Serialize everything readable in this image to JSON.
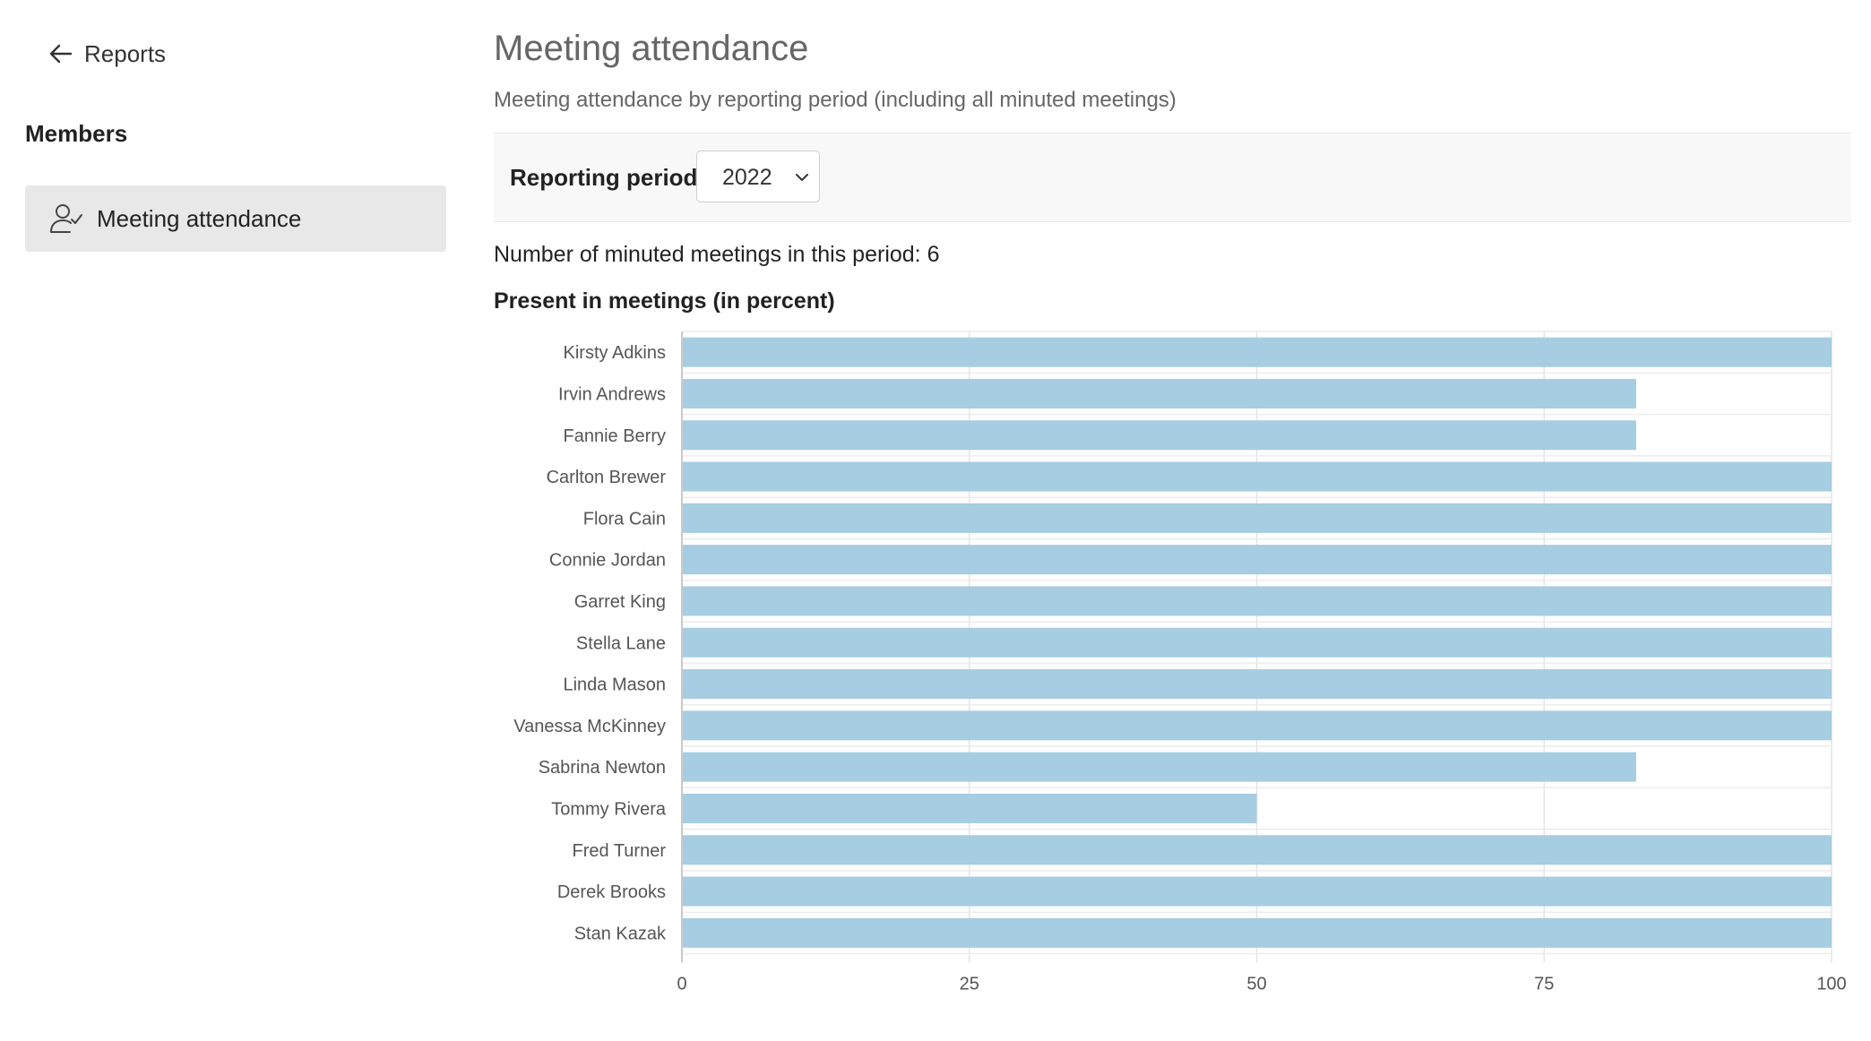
{
  "sidebar": {
    "back_label": "Reports",
    "section_title": "Members",
    "nav_items": [
      {
        "label": "Meeting attendance",
        "icon": "user-check-icon",
        "active": true
      }
    ]
  },
  "main": {
    "title": "Meeting attendance",
    "subtitle": "Meeting attendance by reporting period (including all minuted meetings)",
    "filter": {
      "label": "Reporting period",
      "selected": "2022"
    },
    "meetings_count_text": "Number of minuted meetings in this period: 6"
  },
  "chart_data": {
    "type": "bar",
    "orientation": "horizontal",
    "title": "Present in meetings (in percent)",
    "xlabel": "",
    "ylabel": "",
    "xlim": [
      0,
      100
    ],
    "x_ticks": [
      0,
      25,
      50,
      75,
      100
    ],
    "grid": true,
    "bar_color": "#a6cde2",
    "categories": [
      "Kirsty Adkins",
      "Irvin Andrews",
      "Fannie Berry",
      "Carlton Brewer",
      "Flora Cain",
      "Connie Jordan",
      "Garret King",
      "Stella Lane",
      "Linda Mason",
      "Vanessa McKinney",
      "Sabrina Newton",
      "Tommy Rivera",
      "Fred Turner",
      "Derek Brooks",
      "Stan Kazak"
    ],
    "values": [
      100,
      83,
      83,
      100,
      100,
      100,
      100,
      100,
      100,
      100,
      83,
      50,
      100,
      100,
      100
    ]
  }
}
